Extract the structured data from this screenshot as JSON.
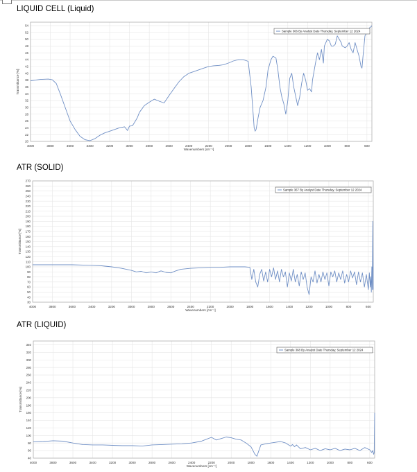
{
  "sections": [
    {
      "title": "LIQUID CELL (Liquid)"
    },
    {
      "title": "ATR (SOLID)"
    },
    {
      "title": "ATR (LIQUID)"
    }
  ],
  "colors": {
    "trace": "#6f8fc5",
    "grid": "#e6e6e6",
    "frame": "#b0b0b0"
  },
  "chart_data": [
    {
      "type": "line",
      "title": "LIQUID CELL (Liquid)",
      "xlabel": "Wavenumbers [cm⁻¹]",
      "ylabel": "Transmittance [%]",
      "legend": "Sample 366 By Analyst Date Thursday, September 12 2024",
      "legend_position": "top-right",
      "grid": true,
      "x_reversed": true,
      "xlim": [
        4000,
        550
      ],
      "ylim": [
        20,
        55
      ],
      "xticks": [
        4000,
        3800,
        3600,
        3400,
        3200,
        3000,
        2800,
        2600,
        2400,
        2200,
        2000,
        1800,
        1600,
        1400,
        1200,
        1000,
        800,
        600
      ],
      "yticks": [
        20,
        22,
        24,
        26,
        28,
        30,
        32,
        34,
        36,
        38,
        40,
        42,
        44,
        46,
        48,
        50,
        52,
        54
      ],
      "series": [
        {
          "x": [
            4000,
            3900,
            3820,
            3780,
            3740,
            3700,
            3650,
            3600,
            3550,
            3500,
            3450,
            3400,
            3350,
            3300,
            3250,
            3200,
            3150,
            3100,
            3050,
            3020,
            3000,
            2970,
            2950,
            2920,
            2900,
            2850,
            2800,
            2750,
            2700,
            2650,
            2600,
            2550,
            2500,
            2450,
            2400,
            2350,
            2300,
            2250,
            2200,
            2150,
            2100,
            2050,
            2000,
            1950,
            1900,
            1850,
            1800,
            1770,
            1750,
            1740,
            1730,
            1720,
            1700,
            1680,
            1650,
            1620,
            1600,
            1570,
            1550,
            1520,
            1500,
            1480,
            1460,
            1440,
            1420,
            1400,
            1380,
            1360,
            1340,
            1300,
            1280,
            1260,
            1240,
            1220,
            1200,
            1180,
            1160,
            1150,
            1120,
            1100,
            1080,
            1060,
            1040,
            1030,
            1000,
            980,
            960,
            940,
            920,
            900,
            880,
            860,
            850,
            820,
            800,
            780,
            760,
            740,
            720,
            700,
            680,
            660,
            650,
            640,
            620,
            600,
            580,
            570,
            560,
            550
          ],
          "y": [
            37.8,
            38.2,
            38.3,
            38.1,
            37,
            34,
            30,
            26,
            23.5,
            21.5,
            20.5,
            20.2,
            20.8,
            21.8,
            22.5,
            23,
            23.5,
            24,
            24.3,
            23.2,
            24.5,
            24.6,
            25.5,
            27,
            28.5,
            30.5,
            31.5,
            32.4,
            31.8,
            31.3,
            33.5,
            35.5,
            37.5,
            39,
            40,
            40.5,
            41,
            41.5,
            42,
            42.2,
            42.3,
            42.5,
            43,
            43.6,
            44,
            44,
            43.5,
            36,
            28,
            24,
            23,
            23.5,
            27,
            30,
            32,
            36,
            41,
            44,
            45,
            44.5,
            41,
            36,
            33,
            31,
            28,
            32,
            38.5,
            40,
            36,
            30.5,
            33,
            37,
            40,
            38,
            35,
            35.5,
            34.5,
            38,
            43,
            46,
            44,
            47,
            43,
            48,
            50,
            49.5,
            48,
            48,
            48.5,
            51,
            50,
            49,
            48,
            47.5,
            48,
            49,
            47,
            46,
            49,
            47,
            45,
            42,
            41.5,
            45,
            51,
            52,
            52.5,
            53.5,
            53.6,
            54
          ]
        }
      ]
    },
    {
      "type": "line",
      "title": "ATR (SOLID)",
      "xlabel": "Wavenumbers [cm⁻¹]",
      "ylabel": "Transmittance [%]",
      "legend": "Sample 367 By Analyst Date Thursday, September 12 2024",
      "legend_position": "top-right",
      "grid": true,
      "x_reversed": true,
      "xlim": [
        4000,
        550
      ],
      "ylim": [
        30,
        270
      ],
      "xticks": [
        4000,
        3800,
        3600,
        3400,
        3200,
        3000,
        2800,
        2600,
        2400,
        2200,
        2000,
        1800,
        1600,
        1400,
        1200,
        1000,
        800,
        600
      ],
      "yticks": [
        30,
        40,
        50,
        60,
        70,
        80,
        90,
        100,
        110,
        120,
        130,
        140,
        150,
        160,
        170,
        180,
        190,
        200,
        210,
        220,
        230,
        240,
        250,
        260,
        270
      ],
      "series": [
        {
          "x": [
            4000,
            3800,
            3600,
            3400,
            3300,
            3200,
            3100,
            3000,
            2950,
            2900,
            2850,
            2800,
            2750,
            2700,
            2650,
            2600,
            2550,
            2500,
            2400,
            2300,
            2200,
            2100,
            2000,
            1900,
            1850,
            1800,
            1780,
            1760,
            1740,
            1720,
            1700,
            1680,
            1660,
            1640,
            1620,
            1600,
            1580,
            1560,
            1540,
            1520,
            1500,
            1480,
            1460,
            1440,
            1420,
            1400,
            1380,
            1360,
            1340,
            1320,
            1300,
            1280,
            1260,
            1240,
            1220,
            1200,
            1180,
            1160,
            1140,
            1120,
            1100,
            1080,
            1060,
            1040,
            1020,
            1000,
            980,
            960,
            940,
            920,
            900,
            880,
            860,
            840,
            820,
            800,
            780,
            760,
            740,
            720,
            700,
            680,
            660,
            640,
            620,
            600,
            590,
            580,
            575,
            570,
            565,
            560,
            555,
            550
          ],
          "y": [
            104,
            104,
            104,
            103,
            102,
            100,
            97,
            93,
            90,
            91,
            88,
            90,
            88,
            92,
            89,
            88,
            92,
            95,
            97,
            98,
            99,
            99,
            100,
            100,
            100,
            99,
            75,
            95,
            70,
            60,
            85,
            95,
            72,
            90,
            70,
            95,
            80,
            98,
            75,
            92,
            70,
            95,
            80,
            90,
            60,
            88,
            72,
            95,
            70,
            85,
            62,
            90,
            75,
            88,
            60,
            45,
            80,
            70,
            92,
            68,
            85,
            70,
            90,
            75,
            88,
            62,
            90,
            80,
            92,
            70,
            88,
            75,
            92,
            68,
            85,
            70,
            92,
            78,
            90,
            65,
            90,
            70,
            88,
            60,
            85,
            55,
            88,
            60,
            80,
            50,
            100,
            55,
            190,
            55
          ]
        }
      ]
    },
    {
      "type": "line",
      "title": "ATR (LIQUID)",
      "xlabel": "Wavenumbers [cm⁻¹]",
      "ylabel": "Transmittance [%]",
      "legend": "Sample 368 By Analyst Date Thursday, September 12 2024",
      "legend_position": "top-right",
      "grid": true,
      "x_reversed": true,
      "xlim": [
        4000,
        550
      ],
      "ylim": [
        40,
        350
      ],
      "xticks": [
        4000,
        3800,
        3600,
        3400,
        3200,
        3000,
        2800,
        2600,
        2400,
        2200,
        2000,
        1800,
        1600,
        1400,
        1200,
        1000,
        800,
        600
      ],
      "yticks": [
        40,
        60,
        80,
        100,
        120,
        140,
        160,
        180,
        200,
        220,
        240,
        260,
        280,
        300,
        320,
        340
      ],
      "series": [
        {
          "x": [
            4000,
            3900,
            3800,
            3700,
            3600,
            3500,
            3400,
            3300,
            3200,
            3100,
            3000,
            2900,
            2800,
            2700,
            2600,
            2500,
            2400,
            2300,
            2250,
            2200,
            2150,
            2100,
            2050,
            2000,
            1950,
            1900,
            1850,
            1800,
            1780,
            1760,
            1740,
            1720,
            1700,
            1650,
            1600,
            1550,
            1500,
            1450,
            1400,
            1380,
            1360,
            1340,
            1300,
            1250,
            1200,
            1150,
            1100,
            1050,
            1000,
            950,
            900,
            850,
            800,
            750,
            700,
            650,
            600,
            580,
            570,
            560,
            555,
            550
          ],
          "y": [
            83,
            84,
            86,
            85,
            80,
            76,
            75,
            75,
            74,
            73,
            73,
            72,
            75,
            76,
            77,
            78,
            80,
            85,
            90,
            95,
            88,
            92,
            96,
            94,
            90,
            88,
            80,
            70,
            60,
            50,
            45,
            60,
            75,
            78,
            80,
            82,
            84,
            80,
            72,
            76,
            70,
            75,
            65,
            68,
            62,
            66,
            60,
            65,
            62,
            66,
            60,
            64,
            62,
            66,
            60,
            68,
            62,
            55,
            60,
            50,
            55,
            160
          ]
        }
      ]
    }
  ]
}
